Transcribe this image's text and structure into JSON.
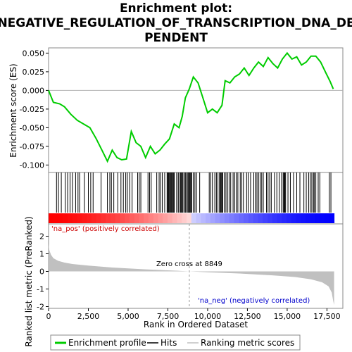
{
  "chart_data": {
    "type": "line",
    "title": "Enrichment plot:\nNEGATIVE_REGULATION_OF_TRANSCRIPTION_DNA_DE\nPENDENT",
    "title_lines": [
      "Enrichment plot:",
      "NEGATIVE_REGULATION_OF_TRANSCRIPTION_DNA_DE",
      "PENDENT"
    ],
    "xlabel": "Rank in Ordered Dataset",
    "xlim": [
      0,
      18500
    ],
    "x_ticks": [
      0,
      2500,
      5000,
      7500,
      10000,
      12500,
      15000,
      17500
    ],
    "x_tick_labels": [
      "0",
      "2,500",
      "5,000",
      "7,500",
      "10,000",
      "12,500",
      "15,000",
      "17,500"
    ],
    "es_panel": {
      "ylabel": "Enrichment score (ES)",
      "ylim": [
        -0.11,
        0.057
      ],
      "y_ticks": [
        -0.1,
        -0.075,
        -0.05,
        -0.025,
        0.0,
        0.025,
        0.05
      ],
      "y_tick_labels": [
        "-0.100",
        "-0.075",
        "-0.050",
        "-0.025",
        "0.000",
        "0.025",
        "0.050"
      ],
      "series": [
        {
          "name": "Enrichment profile",
          "color": "#00cc00",
          "x": [
            0,
            300,
            700,
            1000,
            1400,
            1800,
            2200,
            2600,
            3000,
            3400,
            3700,
            4000,
            4300,
            4600,
            4900,
            5200,
            5500,
            5800,
            6100,
            6400,
            6700,
            7000,
            7300,
            7600,
            7900,
            8200,
            8400,
            8600,
            8849,
            9100,
            9400,
            9700,
            10000,
            10300,
            10600,
            10900,
            11100,
            11400,
            11700,
            12000,
            12300,
            12600,
            12900,
            13200,
            13500,
            13800,
            14100,
            14400,
            14700,
            15000,
            15300,
            15600,
            15900,
            16200,
            16500,
            16800,
            17100,
            17400,
            17700,
            17900
          ],
          "y": [
            0.0,
            -0.016,
            -0.018,
            -0.022,
            -0.032,
            -0.04,
            -0.045,
            -0.05,
            -0.065,
            -0.082,
            -0.095,
            -0.08,
            -0.09,
            -0.093,
            -0.092,
            -0.055,
            -0.07,
            -0.075,
            -0.09,
            -0.075,
            -0.085,
            -0.08,
            -0.072,
            -0.065,
            -0.045,
            -0.05,
            -0.035,
            -0.01,
            0.002,
            0.018,
            0.01,
            -0.01,
            -0.03,
            -0.025,
            -0.03,
            -0.02,
            0.013,
            0.01,
            0.018,
            0.022,
            0.03,
            0.02,
            0.03,
            0.038,
            0.032,
            0.044,
            0.036,
            0.03,
            0.042,
            0.05,
            0.042,
            0.045,
            0.034,
            0.038,
            0.046,
            0.046,
            0.038,
            0.025,
            0.012,
            0.002
          ]
        }
      ]
    },
    "hits_panel": {
      "legend_label": "Hits",
      "hit_ranks": [
        500,
        620,
        800,
        1050,
        1200,
        1350,
        1500,
        1700,
        1850,
        1950,
        2250,
        2500,
        2650,
        2800,
        3300,
        3700,
        3850,
        3950,
        4100,
        4350,
        4550,
        4700,
        4850,
        4950,
        5100,
        5250,
        5600,
        5700,
        5800,
        6250,
        6350,
        6450,
        6800,
        6950,
        7050,
        7150,
        7300,
        7450,
        7500,
        7550,
        7600,
        7650,
        7700,
        7750,
        7800,
        7850,
        7900,
        8050,
        8150,
        8200,
        8300,
        8350,
        8400,
        8450,
        8550,
        8600,
        8650,
        8750,
        8800,
        8850,
        8900,
        8950,
        9000,
        9100,
        9200,
        9300,
        9500,
        10100,
        10200,
        10300,
        10450,
        10550,
        10650,
        10750,
        10800,
        10850,
        10900,
        10950,
        11050,
        11150,
        11250,
        11350,
        11450,
        11600,
        11700,
        11800,
        11900,
        12050,
        12150,
        12250,
        12450,
        12550,
        12700,
        12900,
        13000,
        13100,
        13200,
        13300,
        13400,
        13500,
        13700,
        13800,
        13900,
        14000,
        14200,
        14350,
        14500,
        14650,
        14750,
        14800,
        14850,
        14900,
        15050,
        15200,
        15400,
        15600,
        15800,
        16050,
        16200,
        16350,
        16450,
        16550,
        16650,
        16700,
        16800,
        16950,
        17050,
        17650,
        17750
      ]
    },
    "metric_panel": {
      "ylabel": "Ranked list metric (PreRanked)",
      "ylim": [
        -2.1,
        2.7
      ],
      "y_ticks": [
        -2,
        -1,
        0,
        1,
        2
      ],
      "y_tick_labels": [
        "-2",
        "-1",
        "0",
        "1",
        "2"
      ],
      "series": [
        {
          "name": "Ranking metric scores",
          "color": "#c0c0c0",
          "x": [
            0,
            50,
            150,
            300,
            600,
            1000,
            1500,
            2500,
            4000,
            6000,
            8000,
            8849,
            10000,
            12000,
            14000,
            15500,
            16500,
            17200,
            17600,
            17800,
            17900,
            17950
          ],
          "y": [
            1.55,
            1.2,
            0.95,
            0.75,
            0.6,
            0.5,
            0.42,
            0.33,
            0.22,
            0.12,
            0.04,
            0.0,
            -0.05,
            -0.12,
            -0.22,
            -0.32,
            -0.45,
            -0.62,
            -0.85,
            -1.2,
            -1.7,
            -1.9
          ]
        }
      ],
      "zero_cross_rank": 8849,
      "zero_cross_label": "Zero cross at 8849",
      "pos_label": "'na_pos' (positively correlated)",
      "neg_label": "'na_neg' (negatively correlated)"
    },
    "legend": {
      "placement": "bottom",
      "entries": [
        "Enrichment profile",
        "Hits",
        "Ranking metric scores"
      ]
    },
    "colors": {
      "profile": "#00cc00",
      "hits": "#000000",
      "metric": "#c0c0c0",
      "pos_label": "#cc0000",
      "neg_label": "#0000cc",
      "bar_red": "#ff0000",
      "bar_blue": "#0000ff"
    }
  }
}
